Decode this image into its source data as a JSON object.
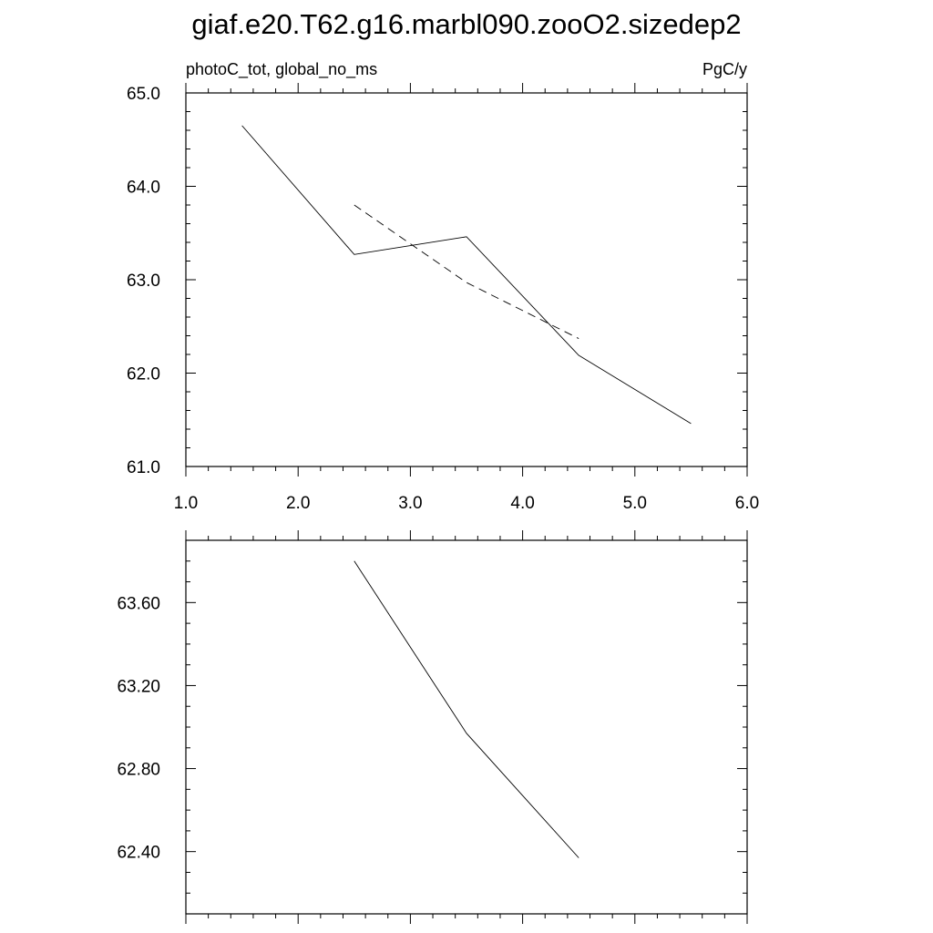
{
  "title": "giaf.e20.T62.g16.marbl090.zooO2.sizedep2",
  "chart_data": [
    {
      "type": "line",
      "left_label": "photoC_tot, global_no_ms",
      "right_label": "PgC/y",
      "xlim": [
        1.0,
        6.0
      ],
      "ylim": [
        61.0,
        65.0
      ],
      "x_ticks": [
        "1.0",
        "2.0",
        "3.0",
        "4.0",
        "5.0",
        "6.0"
      ],
      "y_ticks": [
        "61.0",
        "62.0",
        "63.0",
        "64.0",
        "65.0"
      ],
      "series": [
        {
          "style": "solid",
          "x": [
            1.5,
            2.5,
            3.5,
            4.5,
            5.5
          ],
          "y": [
            64.65,
            63.27,
            63.46,
            62.19,
            61.46
          ]
        },
        {
          "style": "dashed",
          "x": [
            2.5,
            3.5,
            4.5
          ],
          "y": [
            63.8,
            62.97,
            62.37
          ]
        }
      ]
    },
    {
      "type": "line",
      "xlim": [
        1.0,
        6.0
      ],
      "ylim": [
        62.1,
        63.9
      ],
      "y_ticks": [
        "62.40",
        "62.80",
        "63.20",
        "63.60"
      ],
      "series": [
        {
          "style": "solid",
          "x": [
            2.5,
            3.5,
            4.5
          ],
          "y": [
            63.8,
            62.97,
            62.37
          ]
        }
      ]
    }
  ]
}
